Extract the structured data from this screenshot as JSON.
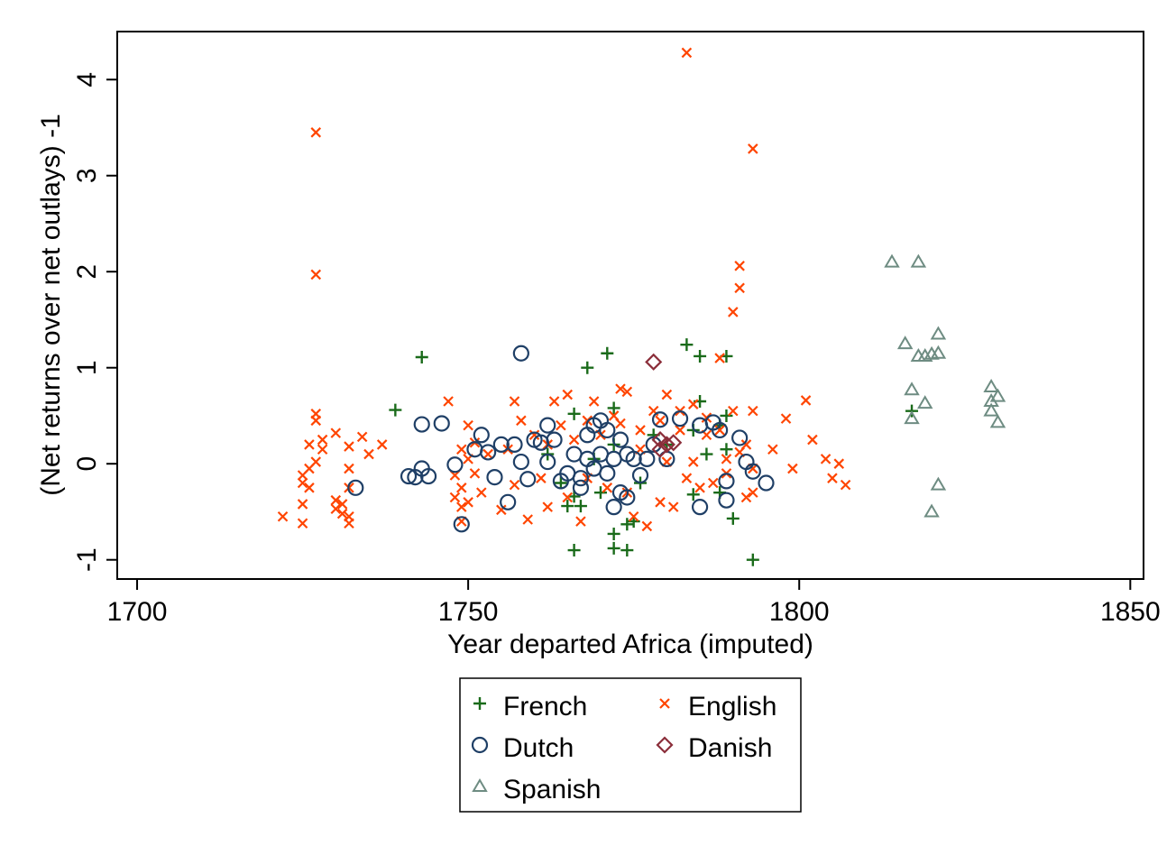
{
  "chart_data": {
    "type": "scatter",
    "xlabel": "Year departed Africa (imputed)",
    "ylabel": "(Net returns over net outlays) -1",
    "xlim": [
      1697,
      1852
    ],
    "ylim": [
      -1.2,
      4.5
    ],
    "x_ticks": [
      "1700",
      "1750",
      "1800",
      "1850"
    ],
    "y_ticks": [
      "-1",
      "0",
      "1",
      "2",
      "3",
      "4"
    ],
    "grid": false,
    "legend_position": "bottom",
    "series": [
      {
        "name": "French",
        "marker": "plus",
        "color": "#1a6b1a",
        "points": [
          [
            1739,
            0.56
          ],
          [
            1743,
            1.11
          ],
          [
            1766,
            0.52
          ],
          [
            1766,
            -0.34
          ],
          [
            1765,
            -0.44
          ],
          [
            1766,
            -0.9
          ],
          [
            1767,
            -0.44
          ],
          [
            1768,
            1.0
          ],
          [
            1770,
            -0.3
          ],
          [
            1771,
            1.15
          ],
          [
            1772,
            0.58
          ],
          [
            1772,
            -0.73
          ],
          [
            1772,
            -0.88
          ],
          [
            1774,
            -0.9
          ],
          [
            1774,
            -0.63
          ],
          [
            1775,
            -0.6
          ],
          [
            1772,
            0.2
          ],
          [
            1769,
            0.05
          ],
          [
            1776,
            -0.2
          ],
          [
            1778,
            0.3
          ],
          [
            1780,
            0.2
          ],
          [
            1783,
            1.24
          ],
          [
            1784,
            0.35
          ],
          [
            1784,
            -0.32
          ],
          [
            1785,
            1.12
          ],
          [
            1785,
            0.65
          ],
          [
            1786,
            0.1
          ],
          [
            1788,
            0.4
          ],
          [
            1788,
            -0.3
          ],
          [
            1789,
            1.12
          ],
          [
            1789,
            0.5
          ],
          [
            1789,
            0.15
          ],
          [
            1790,
            -0.57
          ],
          [
            1793,
            -1.0
          ],
          [
            1817,
            0.55
          ],
          [
            1762,
            0.1
          ],
          [
            1764,
            -0.2
          ]
        ]
      },
      {
        "name": "English",
        "marker": "x",
        "color": "#ff4500",
        "points": [
          [
            1722,
            -0.55
          ],
          [
            1725,
            -0.62
          ],
          [
            1725,
            -0.42
          ],
          [
            1725,
            -0.2
          ],
          [
            1725,
            -0.12
          ],
          [
            1726,
            -0.05
          ],
          [
            1726,
            0.2
          ],
          [
            1726,
            -0.25
          ],
          [
            1727,
            3.45
          ],
          [
            1727,
            1.97
          ],
          [
            1727,
            0.52
          ],
          [
            1727,
            0.45
          ],
          [
            1727,
            0.02
          ],
          [
            1728,
            0.25
          ],
          [
            1728,
            0.15
          ],
          [
            1730,
            0.32
          ],
          [
            1730,
            -0.38
          ],
          [
            1730,
            -0.47
          ],
          [
            1731,
            -0.52
          ],
          [
            1731,
            -0.42
          ],
          [
            1732,
            0.18
          ],
          [
            1732,
            -0.05
          ],
          [
            1732,
            -0.25
          ],
          [
            1732,
            -0.55
          ],
          [
            1732,
            -0.62
          ],
          [
            1734,
            0.28
          ],
          [
            1735,
            0.1
          ],
          [
            1737,
            0.2
          ],
          [
            1747,
            0.65
          ],
          [
            1748,
            -0.12
          ],
          [
            1748,
            -0.35
          ],
          [
            1749,
            -0.6
          ],
          [
            1749,
            -0.45
          ],
          [
            1749,
            -0.25
          ],
          [
            1749,
            0.15
          ],
          [
            1750,
            0.05
          ],
          [
            1750,
            -0.4
          ],
          [
            1750,
            0.4
          ],
          [
            1751,
            0.22
          ],
          [
            1751,
            -0.1
          ],
          [
            1752,
            -0.3
          ],
          [
            1753,
            0.1
          ],
          [
            1755,
            -0.48
          ],
          [
            1756,
            0.15
          ],
          [
            1757,
            0.65
          ],
          [
            1757,
            -0.22
          ],
          [
            1758,
            0.45
          ],
          [
            1759,
            -0.58
          ],
          [
            1760,
            0.3
          ],
          [
            1761,
            -0.15
          ],
          [
            1762,
            0.2
          ],
          [
            1762,
            -0.45
          ],
          [
            1763,
            0.65
          ],
          [
            1764,
            0.4
          ],
          [
            1765,
            0.72
          ],
          [
            1765,
            -0.35
          ],
          [
            1766,
            0.25
          ],
          [
            1767,
            -0.6
          ],
          [
            1768,
            0.45
          ],
          [
            1768,
            -0.15
          ],
          [
            1769,
            0.65
          ],
          [
            1770,
            0.3
          ],
          [
            1771,
            -0.25
          ],
          [
            1772,
            0.5
          ],
          [
            1773,
            0.78
          ],
          [
            1773,
            0.42
          ],
          [
            1774,
            0.75
          ],
          [
            1774,
            -0.3
          ],
          [
            1775,
            -0.55
          ],
          [
            1776,
            0.35
          ],
          [
            1776,
            0.15
          ],
          [
            1777,
            -0.65
          ],
          [
            1778,
            0.55
          ],
          [
            1779,
            0.45
          ],
          [
            1779,
            -0.4
          ],
          [
            1780,
            0.72
          ],
          [
            1780,
            0.02
          ],
          [
            1781,
            -0.45
          ],
          [
            1782,
            0.35
          ],
          [
            1782,
            0.55
          ],
          [
            1783,
            4.28
          ],
          [
            1783,
            -0.15
          ],
          [
            1784,
            0.62
          ],
          [
            1784,
            0.02
          ],
          [
            1785,
            -0.25
          ],
          [
            1786,
            0.3
          ],
          [
            1786,
            0.48
          ],
          [
            1787,
            -0.2
          ],
          [
            1788,
            0.35
          ],
          [
            1788,
            1.1
          ],
          [
            1789,
            0.05
          ],
          [
            1789,
            -0.1
          ],
          [
            1790,
            1.58
          ],
          [
            1790,
            0.55
          ],
          [
            1791,
            2.06
          ],
          [
            1791,
            1.83
          ],
          [
            1791,
            0.12
          ],
          [
            1792,
            -0.35
          ],
          [
            1792,
            0.2
          ],
          [
            1793,
            3.28
          ],
          [
            1793,
            0.55
          ],
          [
            1793,
            -0.05
          ],
          [
            1793,
            -0.3
          ],
          [
            1796,
            0.15
          ],
          [
            1798,
            0.47
          ],
          [
            1799,
            -0.05
          ],
          [
            1801,
            0.66
          ],
          [
            1802,
            0.25
          ],
          [
            1804,
            0.05
          ],
          [
            1805,
            -0.15
          ],
          [
            1806,
            0.0
          ],
          [
            1807,
            -0.22
          ]
        ]
      },
      {
        "name": "Dutch",
        "marker": "circle",
        "color": "#1f3f66",
        "points": [
          [
            1733,
            -0.25
          ],
          [
            1741,
            -0.13
          ],
          [
            1742,
            -0.14
          ],
          [
            1743,
            -0.05
          ],
          [
            1743,
            0.41
          ],
          [
            1744,
            -0.13
          ],
          [
            1746,
            0.42
          ],
          [
            1748,
            -0.01
          ],
          [
            1749,
            -0.63
          ],
          [
            1751,
            0.15
          ],
          [
            1752,
            0.3
          ],
          [
            1753,
            0.12
          ],
          [
            1754,
            -0.14
          ],
          [
            1755,
            0.2
          ],
          [
            1756,
            -0.4
          ],
          [
            1757,
            0.2
          ],
          [
            1758,
            1.15
          ],
          [
            1758,
            0.02
          ],
          [
            1759,
            -0.16
          ],
          [
            1760,
            0.25
          ],
          [
            1761,
            0.22
          ],
          [
            1762,
            0.4
          ],
          [
            1762,
            0.02
          ],
          [
            1763,
            0.25
          ],
          [
            1764,
            -0.18
          ],
          [
            1765,
            -0.1
          ],
          [
            1766,
            0.1
          ],
          [
            1767,
            -0.25
          ],
          [
            1767,
            -0.15
          ],
          [
            1768,
            0.3
          ],
          [
            1768,
            0.05
          ],
          [
            1769,
            0.4
          ],
          [
            1769,
            -0.05
          ],
          [
            1770,
            0.45
          ],
          [
            1770,
            0.1
          ],
          [
            1771,
            0.35
          ],
          [
            1771,
            -0.1
          ],
          [
            1772,
            0.05
          ],
          [
            1772,
            -0.45
          ],
          [
            1773,
            0.25
          ],
          [
            1773,
            -0.3
          ],
          [
            1774,
            -0.35
          ],
          [
            1774,
            0.1
          ],
          [
            1775,
            0.05
          ],
          [
            1776,
            -0.12
          ],
          [
            1777,
            0.05
          ],
          [
            1778,
            0.2
          ],
          [
            1779,
            0.46
          ],
          [
            1780,
            0.05
          ],
          [
            1782,
            0.47
          ],
          [
            1785,
            -0.45
          ],
          [
            1785,
            0.4
          ],
          [
            1787,
            0.43
          ],
          [
            1788,
            0.35
          ],
          [
            1789,
            -0.18
          ],
          [
            1789,
            -0.38
          ],
          [
            1791,
            0.27
          ],
          [
            1792,
            0.02
          ],
          [
            1793,
            -0.08
          ],
          [
            1795,
            -0.2
          ]
        ]
      },
      {
        "name": "Danish",
        "marker": "diamond",
        "color": "#8b2e3a",
        "points": [
          [
            1778,
            1.06
          ],
          [
            1779,
            0.15
          ],
          [
            1779,
            0.25
          ],
          [
            1780,
            0.2
          ],
          [
            1781,
            0.22
          ]
        ]
      },
      {
        "name": "Spanish",
        "marker": "triangle",
        "color": "#6e8c82",
        "points": [
          [
            1814,
            2.1
          ],
          [
            1816,
            1.25
          ],
          [
            1817,
            0.77
          ],
          [
            1817,
            0.47
          ],
          [
            1818,
            2.1
          ],
          [
            1818,
            1.12
          ],
          [
            1819,
            1.12
          ],
          [
            1819,
            0.63
          ],
          [
            1820,
            1.14
          ],
          [
            1820,
            -0.5
          ],
          [
            1821,
            1.35
          ],
          [
            1821,
            -0.22
          ],
          [
            1829,
            0.8
          ],
          [
            1829,
            0.65
          ],
          [
            1829,
            0.55
          ],
          [
            1830,
            0.7
          ],
          [
            1830,
            0.43
          ],
          [
            1821,
            1.15
          ]
        ]
      }
    ]
  },
  "legend": {
    "items": [
      {
        "label": "French",
        "marker": "plus",
        "color": "#1a6b1a"
      },
      {
        "label": "English",
        "marker": "x",
        "color": "#ff4500"
      },
      {
        "label": "Dutch",
        "marker": "circle",
        "color": "#1f3f66"
      },
      {
        "label": "Danish",
        "marker": "diamond",
        "color": "#8b2e3a"
      },
      {
        "label": "Spanish",
        "marker": "triangle",
        "color": "#6e8c82"
      }
    ]
  }
}
